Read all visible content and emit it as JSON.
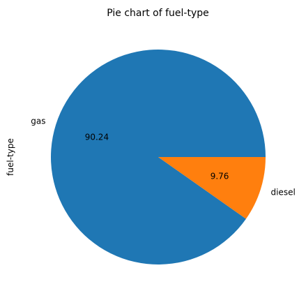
{
  "chart_data": {
    "type": "pie",
    "title": "Pie chart of fuel-type",
    "ylabel": "fuel-type",
    "categories": [
      "gas",
      "diesel"
    ],
    "values": [
      90.24,
      9.76
    ],
    "pct_labels": [
      "90.24",
      "9.76"
    ],
    "colors": [
      "#1f77b4",
      "#ff7f0e"
    ],
    "start_angle_deg": 0,
    "direction": "counterclockwise"
  }
}
